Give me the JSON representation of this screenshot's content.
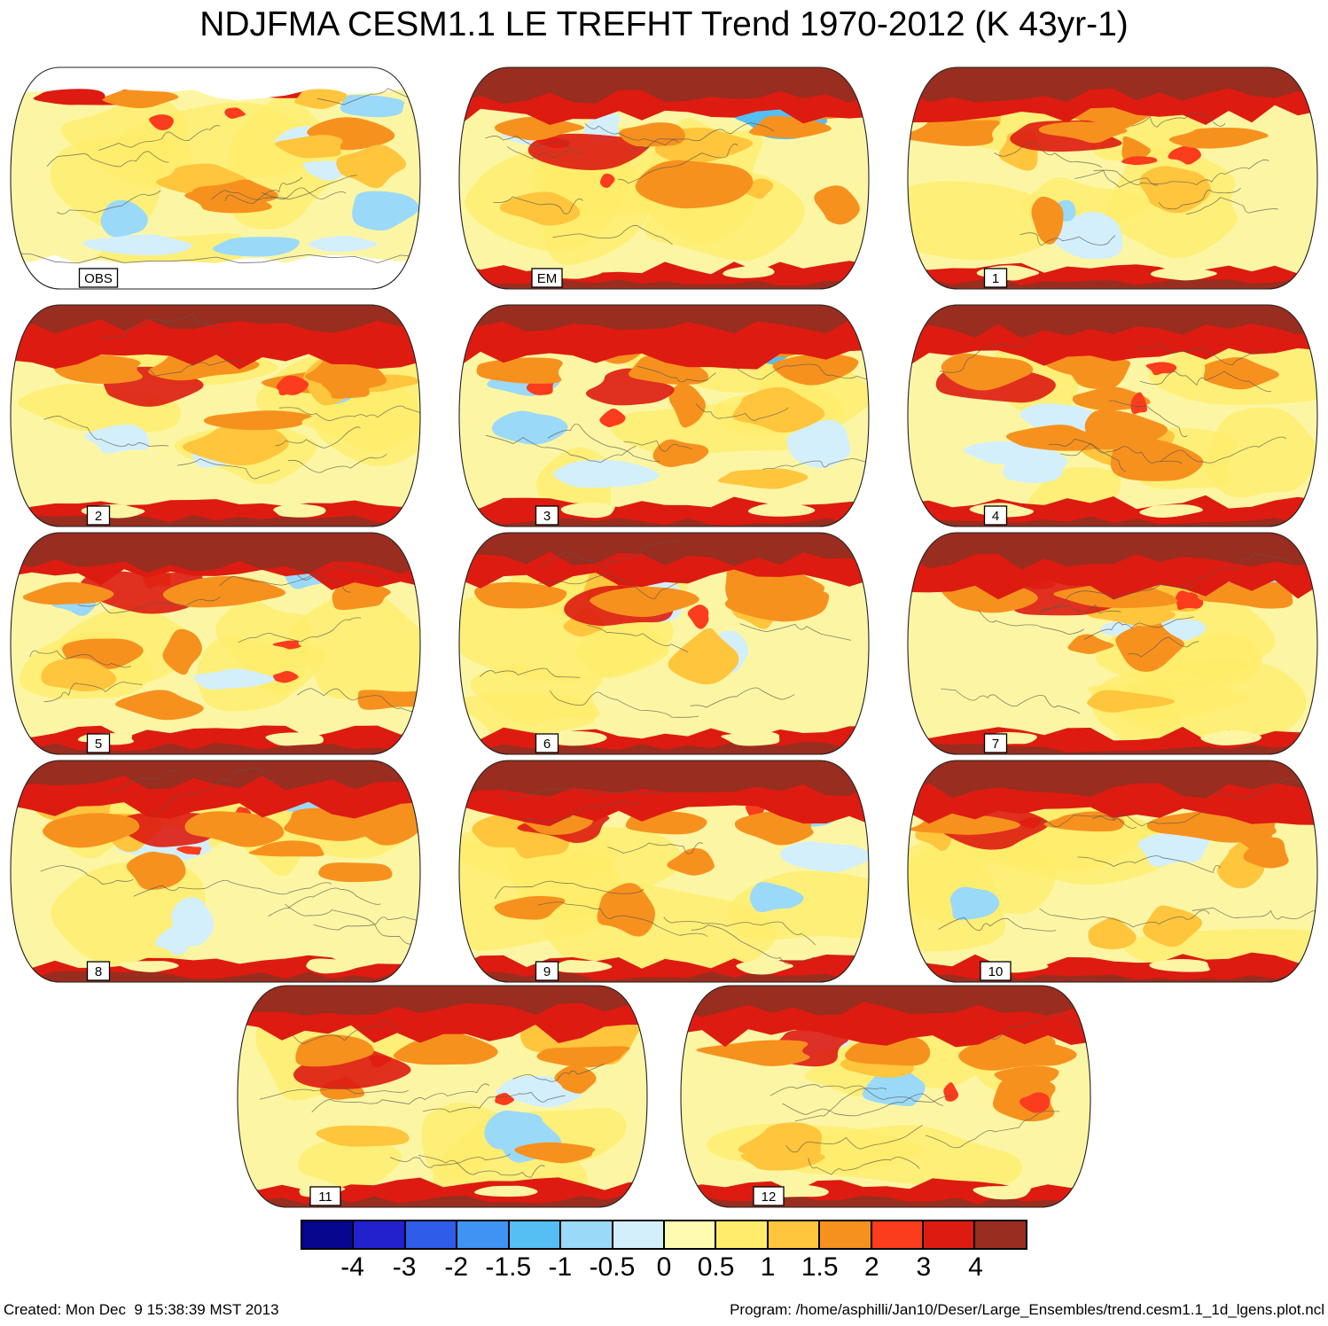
{
  "title": "NDJFMA CESM1.1 LE TREFHT Trend 1970-2012 (K 43yr-1)",
  "panels": [
    {
      "label": "OBS"
    },
    {
      "label": "EM"
    },
    {
      "label": "1"
    },
    {
      "label": "2"
    },
    {
      "label": "3"
    },
    {
      "label": "4"
    },
    {
      "label": "5"
    },
    {
      "label": "6"
    },
    {
      "label": "7"
    },
    {
      "label": "8"
    },
    {
      "label": "9"
    },
    {
      "label": "10"
    },
    {
      "label": "11"
    },
    {
      "label": "12"
    }
  ],
  "footer": {
    "created": "Created: Mon Dec  9 15:38:39 MST 2013",
    "program": "Program: /home/asphilli/Jan10/Deser/Large_Ensembles/trend.cesm1.1_1d_lgens.plot.ncl"
  },
  "chart_data": {
    "type": "heatmap",
    "title": "NDJFMA CESM1.1 LE TREFHT Trend 1970-2012 (K 43yr-1)",
    "subtitle": "",
    "units": "K 43yr-1",
    "panel_labels": [
      "OBS",
      "EM",
      "1",
      "2",
      "3",
      "4",
      "5",
      "6",
      "7",
      "8",
      "9",
      "10",
      "11",
      "12"
    ],
    "layout_rows": [
      [
        "OBS",
        "EM",
        "1"
      ],
      [
        "2",
        "3",
        "4"
      ],
      [
        "5",
        "6",
        "7"
      ],
      [
        "8",
        "9",
        "10"
      ],
      [
        "11",
        "12"
      ]
    ],
    "colorbar": {
      "orientation": "horizontal",
      "tick_labels": [
        "-4",
        "-3",
        "-2",
        "-1.5",
        "-1",
        "-0.5",
        "0",
        "0.5",
        "1",
        "1.5",
        "2",
        "3",
        "4"
      ],
      "colors": [
        "#06068F",
        "#2121CE",
        "#2F5CE8",
        "#3F93F2",
        "#55BEF2",
        "#9BD9F8",
        "#D3EFFB",
        "#FFFBB0",
        "#FFEC6A",
        "#FFC53C",
        "#F7911E",
        "#FB3C1D",
        "#DD1B11",
        "#992D1F"
      ]
    }
  }
}
